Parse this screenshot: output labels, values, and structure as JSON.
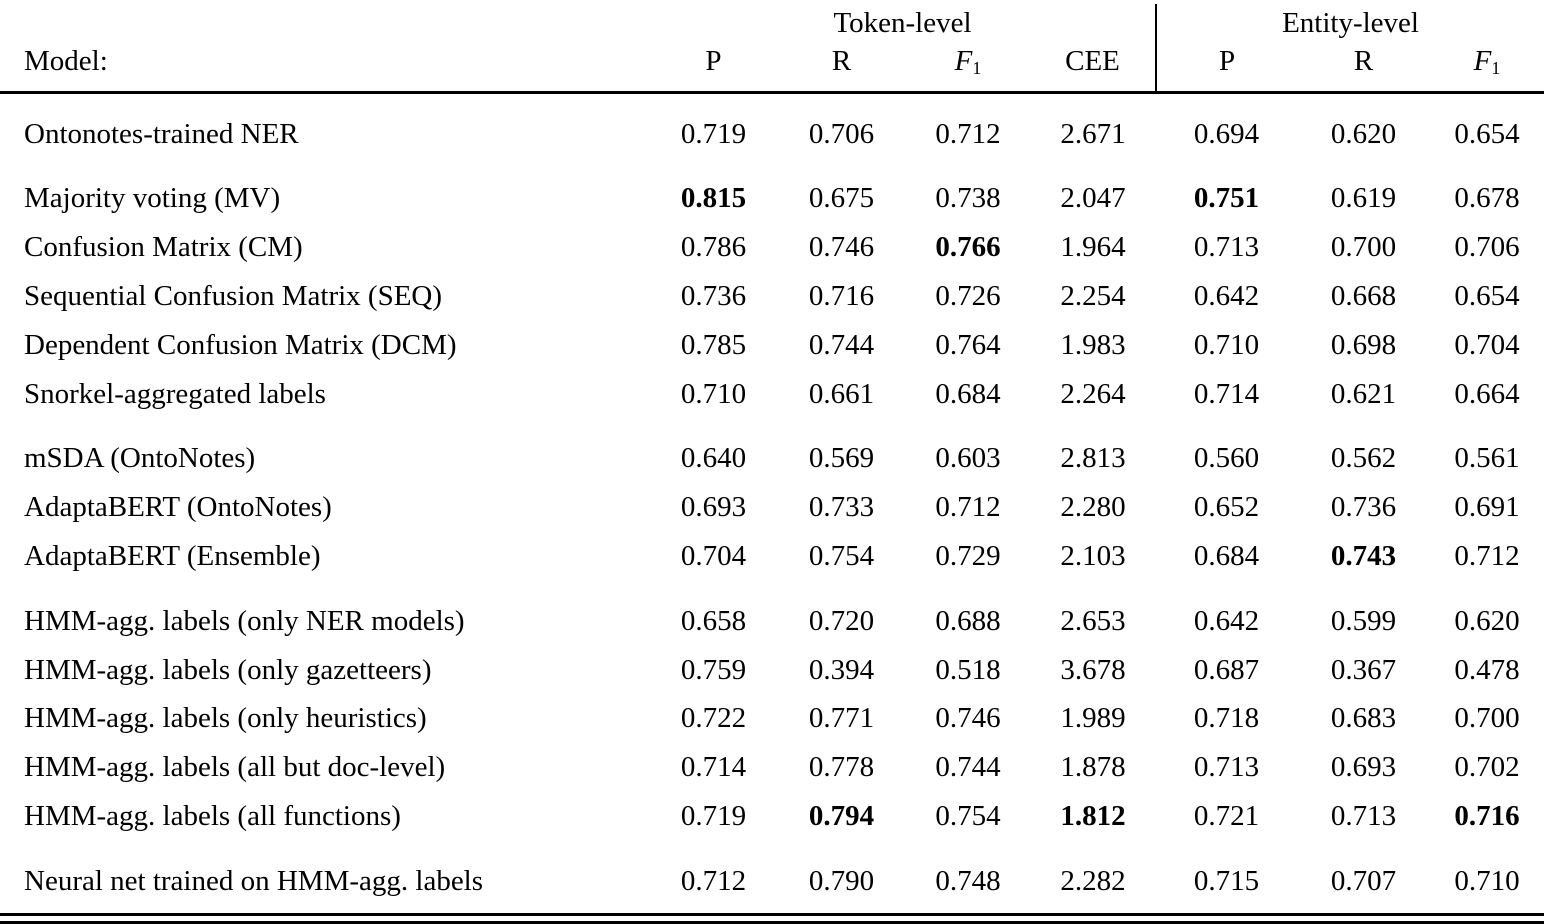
{
  "table": {
    "model_header": "Model:",
    "header_groups": {
      "token": "Token-level",
      "entity": "Entity-level"
    },
    "columns": [
      {
        "id": "token-p",
        "text": "P"
      },
      {
        "id": "token-r",
        "text": "R"
      },
      {
        "id": "token-f1",
        "text": "F",
        "sub": "1",
        "italic": true
      },
      {
        "id": "cee",
        "text": "CEE"
      },
      {
        "id": "entity-p",
        "text": "P",
        "entity_start": true
      },
      {
        "id": "entity-r",
        "text": "R"
      },
      {
        "id": "entity-f1",
        "text": "F",
        "sub": "1",
        "italic": true
      }
    ],
    "groups": [
      {
        "rows": [
          {
            "model": "Ontonotes-trained NER",
            "values": [
              "0.719",
              "0.706",
              "0.712",
              "2.671",
              "0.694",
              "0.620",
              "0.654"
            ],
            "bold": []
          }
        ]
      },
      {
        "rows": [
          {
            "model": "Majority voting (MV)",
            "values": [
              "0.815",
              "0.675",
              "0.738",
              "2.047",
              "0.751",
              "0.619",
              "0.678"
            ],
            "bold": [
              0,
              4
            ]
          },
          {
            "model": "Confusion Matrix (CM)",
            "values": [
              "0.786",
              "0.746",
              "0.766",
              "1.964",
              "0.713",
              "0.700",
              "0.706"
            ],
            "bold": [
              2
            ]
          },
          {
            "model": "Sequential Confusion Matrix (SEQ)",
            "values": [
              "0.736",
              "0.716",
              "0.726",
              "2.254",
              "0.642",
              "0.668",
              "0.654"
            ],
            "bold": []
          },
          {
            "model": "Dependent Confusion Matrix (DCM)",
            "values": [
              "0.785",
              "0.744",
              "0.764",
              "1.983",
              "0.710",
              "0.698",
              "0.704"
            ],
            "bold": []
          },
          {
            "model": "Snorkel-aggregated labels",
            "values": [
              "0.710",
              "0.661",
              "0.684",
              "2.264",
              "0.714",
              "0.621",
              "0.664"
            ],
            "bold": []
          }
        ]
      },
      {
        "rows": [
          {
            "model": "mSDA (OntoNotes)",
            "values": [
              "0.640",
              "0.569",
              "0.603",
              "2.813",
              "0.560",
              "0.562",
              "0.561"
            ],
            "bold": []
          },
          {
            "model": "AdaptaBERT (OntoNotes)",
            "values": [
              "0.693",
              "0.733",
              "0.712",
              "2.280",
              "0.652",
              "0.736",
              "0.691"
            ],
            "bold": []
          },
          {
            "model": "AdaptaBERT (Ensemble)",
            "values": [
              "0.704",
              "0.754",
              "0.729",
              "2.103",
              "0.684",
              "0.743",
              "0.712"
            ],
            "bold": [
              5
            ]
          }
        ]
      },
      {
        "rows": [
          {
            "model": "HMM-agg. labels (only NER models)",
            "values": [
              "0.658",
              "0.720",
              "0.688",
              "2.653",
              "0.642",
              "0.599",
              "0.620"
            ],
            "bold": []
          },
          {
            "model": "HMM-agg. labels (only gazetteers)",
            "values": [
              "0.759",
              "0.394",
              "0.518",
              "3.678",
              "0.687",
              "0.367",
              "0.478"
            ],
            "bold": []
          },
          {
            "model": "HMM-agg. labels (only heuristics)",
            "values": [
              "0.722",
              "0.771",
              "0.746",
              "1.989",
              "0.718",
              "0.683",
              "0.700"
            ],
            "bold": []
          },
          {
            "model": "HMM-agg. labels (all but doc-level)",
            "values": [
              "0.714",
              "0.778",
              "0.744",
              "1.878",
              "0.713",
              "0.693",
              "0.702"
            ],
            "bold": []
          },
          {
            "model": "HMM-agg. labels (all functions)",
            "values": [
              "0.719",
              "0.794",
              "0.754",
              "1.812",
              "0.721",
              "0.713",
              "0.716"
            ],
            "bold": [
              1,
              3,
              6
            ]
          }
        ]
      },
      {
        "rows": [
          {
            "model": "Neural net trained on HMM-agg. labels",
            "values": [
              "0.712",
              "0.790",
              "0.748",
              "2.282",
              "0.715",
              "0.707",
              "0.710"
            ],
            "bold": []
          }
        ]
      }
    ]
  }
}
